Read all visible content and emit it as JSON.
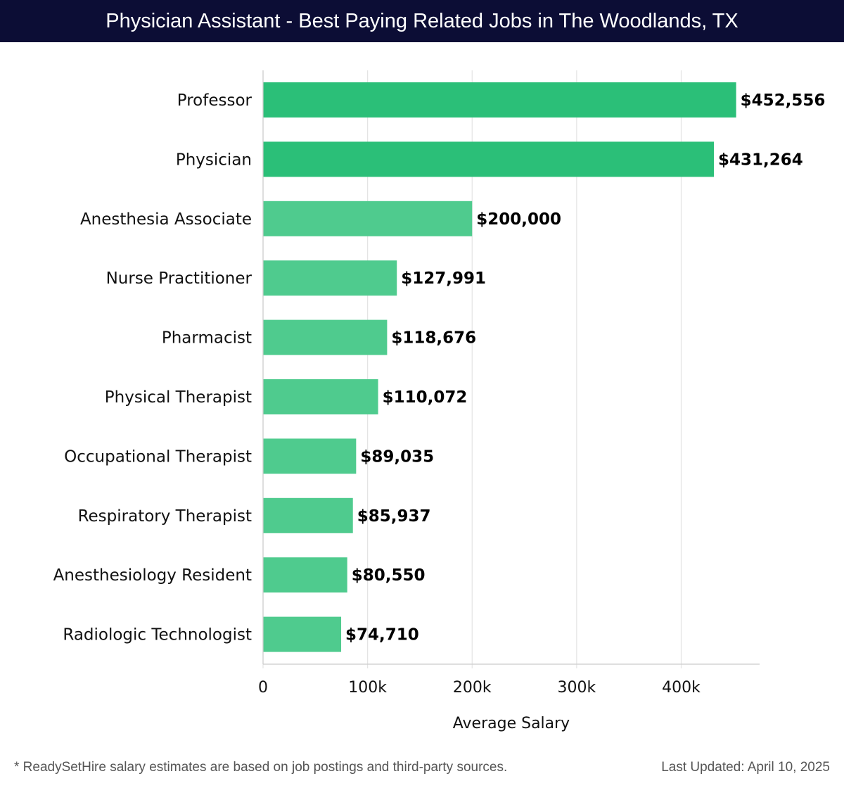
{
  "header": {
    "title": "Physician Assistant - Best Paying Related Jobs in The Woodlands, TX"
  },
  "chart_data": {
    "type": "bar",
    "orientation": "horizontal",
    "title": "Physician Assistant - Best Paying Related Jobs in The Woodlands, TX",
    "xlabel": "Average Salary",
    "ylabel": "",
    "xlim": [
      0,
      475000
    ],
    "xticks": [
      0,
      100000,
      200000,
      300000,
      400000
    ],
    "xtick_labels": [
      "0",
      "100k",
      "200k",
      "300k",
      "400k"
    ],
    "grid": true,
    "categories": [
      "Professor",
      "Physician",
      "Anesthesia Associate",
      "Nurse Practitioner",
      "Pharmacist",
      "Physical Therapist",
      "Occupational Therapist",
      "Respiratory Therapist",
      "Anesthesiology Resident",
      "Radiologic Technologist"
    ],
    "values": [
      452556,
      431264,
      200000,
      127991,
      118676,
      110072,
      89035,
      85937,
      80550,
      74710
    ],
    "value_labels": [
      "$452,556",
      "$431,264",
      "$200,000",
      "$127,991",
      "$118,676",
      "$110,072",
      "$89,035",
      "$85,937",
      "$80,550",
      "$74,710"
    ],
    "colors": {
      "top": "#2bbf78",
      "other": "#4fcb8e",
      "grid": "#e3e3e3",
      "axis": "#cccccc",
      "label": "#111111",
      "value_label": "#000000"
    },
    "highlight_count": 2
  },
  "footer": {
    "note": "* ReadySetHire salary estimates are based on job postings and third-party sources.",
    "updated": "Last Updated: April 10, 2025"
  }
}
